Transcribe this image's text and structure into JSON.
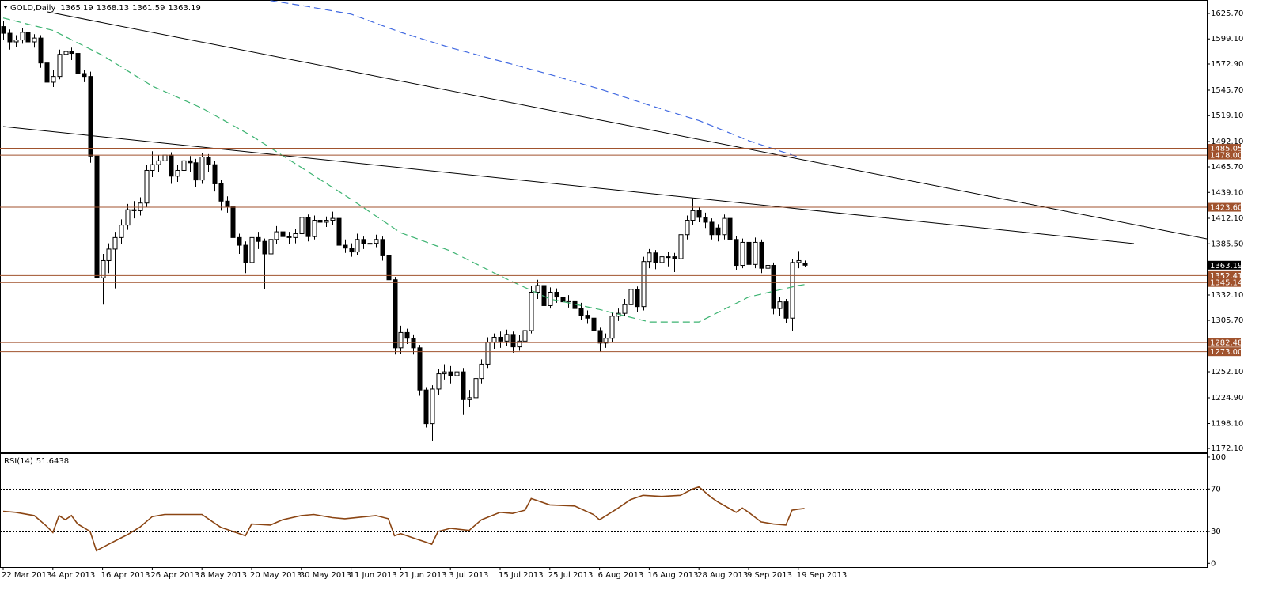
{
  "chart_data": [
    {
      "type": "candlestick",
      "title": "GOLD,Daily",
      "categories": [
        "22 Mar 2013",
        null,
        null,
        null,
        null,
        null,
        null,
        null,
        "4 Apr 2013",
        null,
        null,
        null,
        null,
        null,
        null,
        null,
        "16 Apr 2013",
        null,
        null,
        null,
        null,
        null,
        null,
        null,
        "26 Apr 2013",
        null,
        null,
        null,
        null,
        null,
        null,
        null,
        "8 May 2013",
        null,
        null,
        null,
        null,
        null,
        null,
        null,
        "20 May 2013",
        null,
        null,
        null,
        null,
        null,
        null,
        null,
        "30 May 2013",
        null,
        null,
        null,
        null,
        null,
        null,
        null,
        "11 Jun 2013",
        null,
        null,
        null,
        null,
        null,
        null,
        null,
        "21 Jun 2013",
        null,
        null,
        null,
        null,
        null,
        null,
        null,
        "3 Jul 2013",
        null,
        null,
        null,
        null,
        null,
        null,
        null,
        "15 Jul 2013",
        null,
        null,
        null,
        null,
        null,
        null,
        null,
        "25 Jul 2013",
        null,
        null,
        null,
        null,
        null,
        null,
        null,
        "6 Aug 2013",
        null,
        null,
        null,
        null,
        null,
        null,
        null,
        "16 Aug 2013",
        null,
        null,
        null,
        null,
        null,
        null,
        null,
        "28 Aug 2013",
        null,
        null,
        null,
        null,
        null,
        null,
        null,
        "9 Sep 2013",
        null,
        null,
        null,
        null,
        null,
        null,
        null,
        "19 Sep 2013",
        null
      ],
      "open": [
        1612,
        1605,
        1596,
        1598,
        1606,
        1596,
        1600,
        1574,
        1554,
        1560,
        1583,
        1586,
        1584,
        1563,
        1560,
        1477,
        1350,
        1368,
        1380,
        1392,
        1405,
        1421,
        1420,
        1428,
        1462,
        1468,
        1472,
        1478,
        1456,
        1462,
        1472,
        1470,
        1452,
        1476,
        1468,
        1448,
        1430,
        1424,
        1392,
        1384,
        1366,
        1392,
        1388,
        1375,
        1390,
        1398,
        1393,
        1392,
        1396,
        1413,
        1393,
        1410,
        1408,
        1410,
        1412,
        1384,
        1381,
        1377,
        1390,
        1386,
        1386,
        1390,
        1373,
        1348,
        1277,
        1293,
        1287,
        1277,
        1233,
        1198,
        1234,
        1250,
        1252,
        1248,
        1252,
        1223,
        1225,
        1245,
        1260,
        1283,
        1288,
        1284,
        1291,
        1278,
        1284,
        1295,
        1335,
        1342,
        1321,
        1335,
        1330,
        1325,
        1326,
        1318,
        1311,
        1308,
        1295,
        1282,
        1287,
        1310,
        1313,
        1322,
        1338,
        1320,
        1367,
        1376,
        1366,
        1372,
        1372,
        1370,
        1395,
        1410,
        1420,
        1413,
        1408,
        1402,
        1395,
        1412,
        1390,
        1363,
        1387,
        1364,
        1387,
        1360,
        1363,
        1318,
        1325,
        1308,
        1366,
        1365.19
      ],
      "high": [
        1618,
        1609,
        1603,
        1610,
        1609,
        1604,
        1603,
        1578,
        1567,
        1588,
        1592,
        1590,
        1588,
        1567,
        1565,
        1482,
        1375,
        1386,
        1398,
        1411,
        1427,
        1430,
        1434,
        1468,
        1482,
        1478,
        1483,
        1481,
        1468,
        1487,
        1477,
        1474,
        1480,
        1479,
        1472,
        1452,
        1435,
        1427,
        1396,
        1388,
        1396,
        1398,
        1391,
        1394,
        1404,
        1402,
        1398,
        1401,
        1419,
        1416,
        1415,
        1416,
        1414,
        1419,
        1414,
        1390,
        1386,
        1396,
        1393,
        1392,
        1395,
        1393,
        1377,
        1351,
        1300,
        1297,
        1291,
        1280,
        1236,
        1238,
        1255,
        1260,
        1258,
        1262,
        1256,
        1233,
        1250,
        1265,
        1288,
        1292,
        1294,
        1296,
        1294,
        1290,
        1300,
        1342,
        1348,
        1346,
        1340,
        1339,
        1335,
        1332,
        1329,
        1324,
        1316,
        1312,
        1298,
        1292,
        1314,
        1318,
        1328,
        1342,
        1341,
        1372,
        1380,
        1379,
        1378,
        1377,
        1376,
        1400,
        1415,
        1433,
        1424,
        1418,
        1412,
        1406,
        1416,
        1415,
        1394,
        1391,
        1390,
        1392,
        1390,
        1368,
        1366,
        1330,
        1328,
        1370,
        1378,
        1368.13
      ],
      "low": [
        1598,
        1588,
        1591,
        1594,
        1591,
        1590,
        1569,
        1545,
        1549,
        1557,
        1578,
        1577,
        1558,
        1554,
        1470,
        1322,
        1322,
        1355,
        1339,
        1385,
        1400,
        1412,
        1415,
        1424,
        1455,
        1460,
        1466,
        1448,
        1450,
        1457,
        1460,
        1445,
        1448,
        1460,
        1440,
        1420,
        1418,
        1387,
        1375,
        1355,
        1360,
        1380,
        1338,
        1370,
        1385,
        1388,
        1385,
        1386,
        1392,
        1388,
        1390,
        1402,
        1403,
        1405,
        1378,
        1376,
        1372,
        1374,
        1380,
        1381,
        1382,
        1368,
        1344,
        1270,
        1271,
        1281,
        1270,
        1227,
        1194,
        1180,
        1228,
        1244,
        1240,
        1243,
        1207,
        1215,
        1220,
        1240,
        1256,
        1276,
        1277,
        1279,
        1272,
        1274,
        1280,
        1292,
        1328,
        1316,
        1318,
        1324,
        1320,
        1319,
        1312,
        1306,
        1302,
        1290,
        1273,
        1277,
        1283,
        1305,
        1310,
        1318,
        1314,
        1316,
        1360,
        1359,
        1360,
        1362,
        1356,
        1366,
        1390,
        1405,
        1408,
        1402,
        1390,
        1388,
        1390,
        1385,
        1358,
        1360,
        1358,
        1360,
        1355,
        1354,
        1312,
        1310,
        1303,
        1295,
        1360,
        1361.59
      ],
      "close": [
        1605,
        1596,
        1598,
        1606,
        1596,
        1600,
        1574,
        1554,
        1560,
        1583,
        1586,
        1584,
        1563,
        1560,
        1477,
        1350,
        1368,
        1380,
        1392,
        1405,
        1421,
        1420,
        1428,
        1462,
        1468,
        1472,
        1478,
        1456,
        1462,
        1472,
        1470,
        1452,
        1476,
        1468,
        1448,
        1430,
        1424,
        1392,
        1384,
        1366,
        1392,
        1388,
        1375,
        1390,
        1398,
        1393,
        1392,
        1396,
        1413,
        1393,
        1410,
        1408,
        1410,
        1412,
        1384,
        1381,
        1377,
        1390,
        1386,
        1386,
        1390,
        1373,
        1348,
        1277,
        1293,
        1287,
        1277,
        1233,
        1198,
        1234,
        1250,
        1252,
        1248,
        1252,
        1223,
        1225,
        1245,
        1260,
        1283,
        1288,
        1284,
        1291,
        1278,
        1284,
        1295,
        1335,
        1342,
        1321,
        1335,
        1330,
        1325,
        1326,
        1318,
        1311,
        1308,
        1295,
        1282,
        1287,
        1310,
        1313,
        1322,
        1338,
        1320,
        1367,
        1376,
        1366,
        1372,
        1372,
        1370,
        1395,
        1410,
        1420,
        1413,
        1408,
        1395,
        1395,
        1412,
        1390,
        1363,
        1387,
        1364,
        1387,
        1360,
        1363,
        1318,
        1325,
        1308,
        1366,
        1368,
        1363.19
      ],
      "up_color": "#ffffff",
      "down_color": "#000000",
      "price_box_color": "#000000",
      "ylim": [
        1168,
        1639.7
      ],
      "yticks": [
        {
          "value": 1625.7,
          "label": "1625.70"
        },
        {
          "value": 1599.1,
          "label": "1599.10"
        },
        {
          "value": 1572.9,
          "label": "1572.90"
        },
        {
          "value": 1545.7,
          "label": "1545.70"
        },
        {
          "value": 1519.1,
          "label": "1519.10"
        },
        {
          "value": 1492.1,
          "label": "1492.10"
        },
        {
          "value": 1465.7,
          "label": "1465.70"
        },
        {
          "value": 1439.1,
          "label": "1439.10"
        },
        {
          "value": 1412.1,
          "label": "1412.10"
        },
        {
          "value": 1385.5,
          "label": "1385.50"
        },
        {
          "value": 1332.1,
          "label": "1332.10"
        },
        {
          "value": 1305.7,
          "label": "1305.70"
        },
        {
          "value": 1252.1,
          "label": "1252.10"
        },
        {
          "value": 1224.9,
          "label": "1224.90"
        },
        {
          "value": 1198.1,
          "label": "1198.10"
        },
        {
          "value": 1172.1,
          "label": "1172.10"
        }
      ],
      "levels": [
        1485.05,
        {
          "value": 1478,
          "label": "1478.00"
        },
        {
          "value": 1423.6,
          "label": "1423.60"
        },
        1352.41,
        1345.14,
        1282.48,
        {
          "value": 1273,
          "label": "1273.00"
        }
      ],
      "level_color": "#a0522d",
      "overlays": [
        {
          "color": "#3cb371",
          "x": [
            0,
            8,
            16,
            24,
            32,
            40,
            48,
            56,
            64,
            72,
            80,
            88,
            96,
            104,
            112,
            120,
            128,
            129
          ],
          "values": [
            1621,
            1608,
            1582,
            1550,
            1527,
            1498,
            1465,
            1432,
            1397,
            1378,
            1352,
            1328,
            1317,
            1304,
            1304,
            1330,
            1342,
            1343
          ]
        },
        {
          "color": "#4169e1",
          "x": [
            43,
            48,
            56,
            64,
            72,
            80,
            88,
            96,
            104,
            112,
            120,
            128
          ],
          "values": [
            1639,
            1634,
            1625,
            1606,
            1590,
            1576,
            1562,
            1547,
            1530,
            1514,
            1493,
            1476
          ]
        }
      ]
    },
    {
      "type": "line",
      "title": "RSI(14)",
      "color": "#8b4513",
      "x": [
        0,
        2,
        5,
        7,
        8,
        9,
        10,
        11,
        12,
        14,
        15,
        17,
        20,
        22,
        24,
        26,
        30,
        32,
        34,
        35,
        37,
        39,
        40,
        43,
        45,
        48,
        50,
        53,
        55,
        60,
        62,
        63,
        64,
        66,
        68,
        69,
        70,
        72,
        75,
        77,
        80,
        82,
        84,
        85,
        86,
        88,
        92,
        95,
        96,
        99,
        101,
        103,
        106,
        109,
        111,
        112,
        114,
        115,
        118,
        119,
        120,
        122,
        124,
        126,
        127,
        128,
        129
      ],
      "values": [
        49,
        48,
        45,
        35,
        29,
        45,
        41,
        45,
        37,
        30,
        12,
        18,
        27,
        34,
        44,
        46,
        46,
        46,
        38,
        34,
        30,
        26,
        37,
        36,
        41,
        45,
        46,
        43,
        42,
        45,
        42,
        26,
        28,
        24,
        20,
        18,
        30,
        33,
        31,
        41,
        48,
        47,
        50,
        61,
        59,
        55,
        54,
        46,
        41,
        52,
        60,
        64,
        63,
        64,
        70,
        72,
        62,
        58,
        48,
        52,
        48,
        39,
        37,
        36,
        50,
        51,
        51.6438
      ],
      "ylim": [
        -3.5,
        103.7
      ],
      "yticks": [
        100,
        70,
        30,
        0
      ],
      "levels": [
        70,
        30
      ]
    }
  ]
}
